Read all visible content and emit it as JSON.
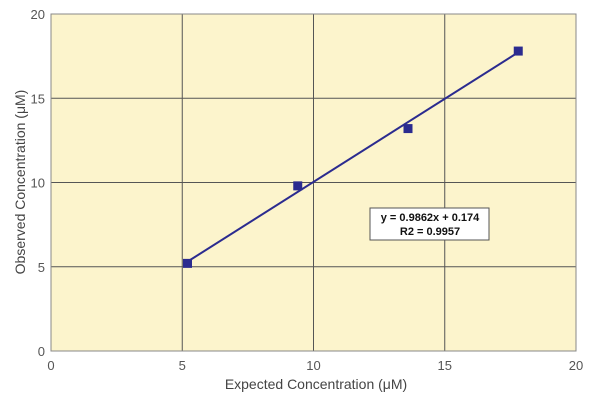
{
  "chart_data": {
    "type": "scatter",
    "xlabel": "Expected Concentration (μM)",
    "ylabel": "Observed Concentration (μM)",
    "xlim": [
      0,
      20
    ],
    "ylim": [
      0,
      20
    ],
    "x_ticks": [
      "0",
      "5",
      "10",
      "15",
      "20"
    ],
    "y_ticks": [
      "0",
      "5",
      "10",
      "15",
      "20"
    ],
    "grid": true,
    "series": [
      {
        "points": [
          {
            "x": 5.2,
            "y": 5.2
          },
          {
            "x": 9.4,
            "y": 9.8
          },
          {
            "x": 13.6,
            "y": 13.2
          },
          {
            "x": 17.8,
            "y": 17.8
          }
        ],
        "color": "#2b2b8f"
      }
    ],
    "trendline": {
      "slope": 0.9862,
      "intercept": 0.174,
      "x_range": [
        5.2,
        17.8
      ],
      "color": "#2b2b8f"
    },
    "annotation": {
      "lines": [
        "y = 0.9862x + 0.174",
        "R2 = 0.9957"
      ]
    },
    "colors": {
      "plot_background": "#fcf4cc",
      "grid": "#555555",
      "frame": "#888888"
    }
  }
}
